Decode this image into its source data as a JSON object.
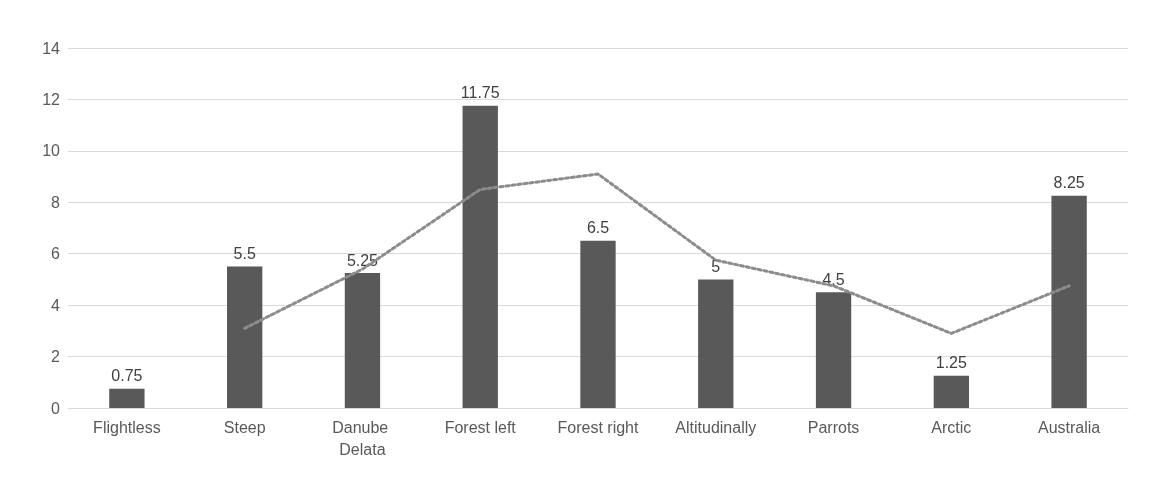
{
  "chart_data": {
    "type": "bar",
    "categories": [
      "Flightless",
      "Steep",
      "Danube Delata",
      "Forest left",
      "Forest right",
      "Altitudinally",
      "Parrots",
      "Arctic",
      "Australia"
    ],
    "series": [
      {
        "color": "#595959",
        "values": [
          0.75,
          5.5,
          5.25,
          11.75,
          6.5,
          5,
          4.5,
          1.25,
          8.25
        ],
        "value_labels": [
          "0.75",
          "5.5",
          "5.25",
          "11.75",
          "6.5",
          "5",
          "4.5",
          "1.25",
          "8.25"
        ]
      },
      {
        "type": "line",
        "color": "#8c8c8c",
        "line_style": "dotted",
        "marker": "none",
        "values": [
          null,
          3.1,
          5.4,
          8.5,
          9.1,
          5.75,
          4.75,
          2.9,
          4.75
        ]
      }
    ],
    "ylim": [
      0,
      14
    ],
    "yticks": [
      0,
      2,
      4,
      6,
      8,
      10,
      12,
      14
    ],
    "grid": "y"
  }
}
